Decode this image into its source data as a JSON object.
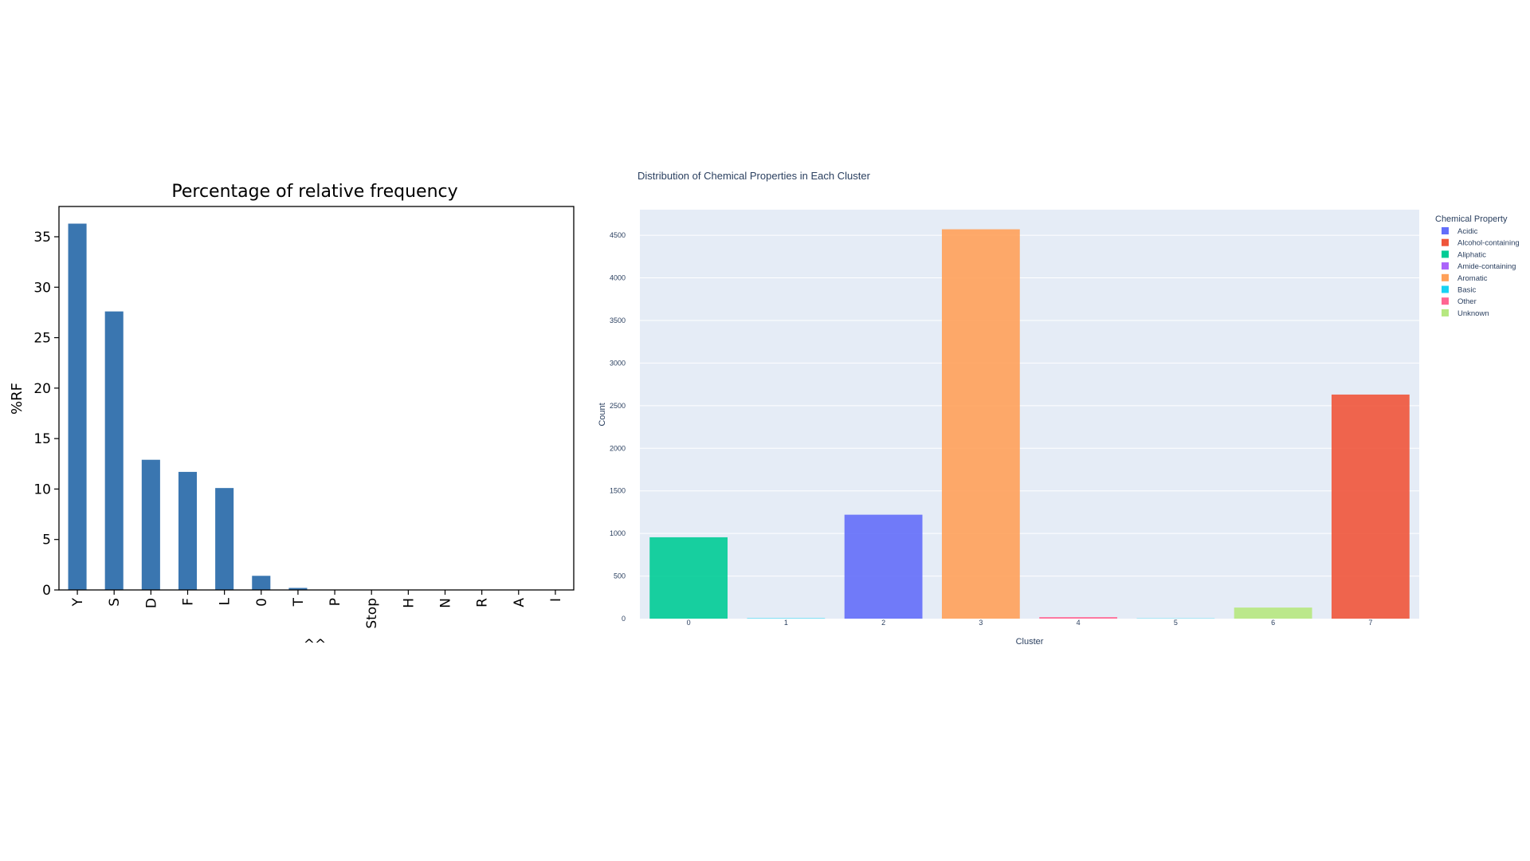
{
  "chart_data": [
    {
      "type": "bar",
      "title": "Percentage of relative frequency",
      "xlabel": "^^",
      "ylabel": "%RF",
      "categories": [
        "Y",
        "S",
        "D",
        "F",
        "L",
        "0",
        "T",
        "P",
        "Stop",
        "H",
        "N",
        "R",
        "A",
        "I"
      ],
      "values": [
        36.3,
        27.6,
        12.9,
        11.7,
        10.1,
        1.4,
        0.2,
        0.0,
        0.0,
        0.0,
        0.0,
        0.0,
        0.0,
        0.0
      ],
      "ylim": [
        0,
        38
      ],
      "yticks": [
        0,
        5,
        10,
        15,
        20,
        25,
        30,
        35
      ],
      "bar_color": "#3a76b0",
      "grid": false
    },
    {
      "type": "bar",
      "title": "Distribution of Chemical Properties in Each Cluster",
      "xlabel": "Cluster",
      "ylabel": "Count",
      "categories": [
        "0",
        "1",
        "2",
        "3",
        "4",
        "5",
        "6",
        "7"
      ],
      "values": [
        955,
        5,
        1220,
        4570,
        18,
        3,
        130,
        2630
      ],
      "property": [
        "Aliphatic",
        "Basic",
        "Acidic",
        "Aromatic",
        "Other",
        "Basic",
        "Unknown",
        "Alcohol-containing"
      ],
      "ylim": [
        0,
        4800
      ],
      "yticks": [
        0,
        500,
        1000,
        1500,
        2000,
        2500,
        3000,
        3500,
        4000,
        4500
      ],
      "legend_title": "Chemical Property",
      "legend_position": "top-right",
      "legend": [
        {
          "name": "Acidic",
          "color": "#636efa"
        },
        {
          "name": "Alcohol-containing",
          "color": "#ef553b"
        },
        {
          "name": "Aliphatic",
          "color": "#00cc96"
        },
        {
          "name": "Amide-containing",
          "color": "#ab63fa"
        },
        {
          "name": "Aromatic",
          "color": "#ffa15a"
        },
        {
          "name": "Basic",
          "color": "#19d3f3"
        },
        {
          "name": "Other",
          "color": "#ff6692"
        },
        {
          "name": "Unknown",
          "color": "#b6e880"
        }
      ],
      "plot_bg": "#e5ecf6",
      "grid": true
    }
  ]
}
